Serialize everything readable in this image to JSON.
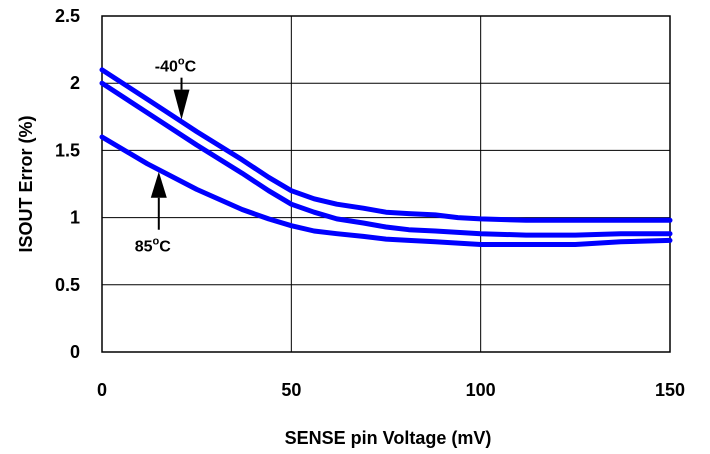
{
  "chart_data": {
    "type": "line",
    "xlabel": "SENSE pin Voltage (mV)",
    "ylabel": "ISOUT Error (%)",
    "xlim": [
      0,
      150
    ],
    "ylim": [
      0,
      2.5
    ],
    "x_ticks": [
      "0",
      "50",
      "100",
      "150"
    ],
    "y_ticks": [
      "0",
      "0.5",
      "1",
      "1.5",
      "2",
      "2.5"
    ],
    "grid": true,
    "series_color": "#0000ff",
    "series": [
      {
        "x": [
          0,
          12,
          25,
          37,
          44,
          50,
          56,
          62,
          69,
          75,
          81,
          88,
          94,
          100,
          112,
          125,
          137,
          150
        ],
        "values": [
          2.1,
          1.88,
          1.64,
          1.43,
          1.3,
          1.2,
          1.14,
          1.1,
          1.07,
          1.04,
          1.03,
          1.02,
          1.0,
          0.99,
          0.98,
          0.98,
          0.98,
          0.98
        ]
      },
      {
        "x": [
          0,
          12,
          25,
          37,
          44,
          50,
          56,
          62,
          69,
          75,
          81,
          88,
          94,
          100,
          112,
          125,
          137,
          150
        ],
        "values": [
          2.0,
          1.78,
          1.54,
          1.33,
          1.2,
          1.1,
          1.04,
          0.99,
          0.96,
          0.93,
          0.91,
          0.9,
          0.89,
          0.88,
          0.87,
          0.87,
          0.88,
          0.88
        ]
      },
      {
        "x": [
          0,
          12,
          25,
          37,
          44,
          50,
          56,
          62,
          69,
          75,
          81,
          88,
          94,
          100,
          112,
          125,
          137,
          150
        ],
        "values": [
          1.6,
          1.4,
          1.21,
          1.06,
          0.99,
          0.94,
          0.9,
          0.88,
          0.86,
          0.84,
          0.83,
          0.82,
          0.81,
          0.8,
          0.8,
          0.8,
          0.82,
          0.83
        ]
      }
    ],
    "annotations": [
      {
        "base": "-40",
        "sup": "o",
        "tail": "C",
        "series_index": 0,
        "x": 21,
        "direction": "down"
      },
      {
        "base": "85",
        "sup": "o",
        "tail": "C",
        "series_index": 2,
        "x": 15,
        "direction": "up"
      }
    ]
  }
}
